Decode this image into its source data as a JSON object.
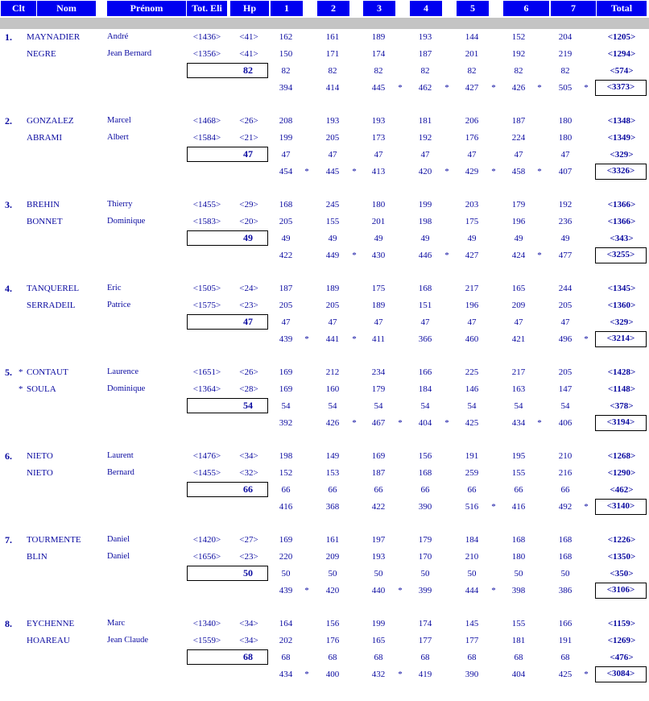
{
  "headers": [
    "Clt",
    "Nom",
    "Prénom",
    "Tot. Eli",
    "Hp",
    "1",
    "2",
    "3",
    "4",
    "5",
    "6",
    "7",
    "Total"
  ],
  "teams": [
    {
      "rank": "1.",
      "p1": {
        "star": "",
        "nom": "MAYNADIER",
        "prenom": "André",
        "tot": "<1436>",
        "hp": "<41>",
        "games": [
          "162",
          "161",
          "189",
          "193",
          "144",
          "152",
          "204"
        ],
        "total": "<1205>"
      },
      "p2": {
        "star": "",
        "nom": "NEGRE",
        "prenom": "Jean Bernard",
        "tot": "<1356>",
        "hp": "<41>",
        "games": [
          "150",
          "171",
          "174",
          "187",
          "201",
          "192",
          "219"
        ],
        "total": "<1294>"
      },
      "hp": "82",
      "hcp": [
        "82",
        "82",
        "82",
        "82",
        "82",
        "82",
        "82"
      ],
      "hcp_total": "<574>",
      "sums": [
        "394",
        "414",
        "445",
        "462",
        "427",
        "426",
        "505"
      ],
      "marks": [
        "",
        "",
        "*",
        "*",
        "*",
        "*",
        "*"
      ],
      "team_total": "<3373>"
    },
    {
      "rank": "2.",
      "p1": {
        "star": "",
        "nom": "GONZALEZ",
        "prenom": "Marcel",
        "tot": "<1468>",
        "hp": "<26>",
        "games": [
          "208",
          "193",
          "193",
          "181",
          "206",
          "187",
          "180"
        ],
        "total": "<1348>"
      },
      "p2": {
        "star": "",
        "nom": "ABRAMI",
        "prenom": "Albert",
        "tot": "<1584>",
        "hp": "<21>",
        "games": [
          "199",
          "205",
          "173",
          "192",
          "176",
          "224",
          "180"
        ],
        "total": "<1349>"
      },
      "hp": "47",
      "hcp": [
        "47",
        "47",
        "47",
        "47",
        "47",
        "47",
        "47"
      ],
      "hcp_total": "<329>",
      "sums": [
        "454",
        "445",
        "413",
        "420",
        "429",
        "458",
        "407"
      ],
      "marks": [
        "*",
        "*",
        "",
        "*",
        "*",
        "*",
        ""
      ],
      "team_total": "<3326>"
    },
    {
      "rank": "3.",
      "p1": {
        "star": "",
        "nom": "BREHIN",
        "prenom": "Thierry",
        "tot": "<1455>",
        "hp": "<29>",
        "games": [
          "168",
          "245",
          "180",
          "199",
          "203",
          "179",
          "192"
        ],
        "total": "<1366>"
      },
      "p2": {
        "star": "",
        "nom": "BONNET",
        "prenom": "Dominique",
        "tot": "<1583>",
        "hp": "<20>",
        "games": [
          "205",
          "155",
          "201",
          "198",
          "175",
          "196",
          "236"
        ],
        "total": "<1366>"
      },
      "hp": "49",
      "hcp": [
        "49",
        "49",
        "49",
        "49",
        "49",
        "49",
        "49"
      ],
      "hcp_total": "<343>",
      "sums": [
        "422",
        "449",
        "430",
        "446",
        "427",
        "424",
        "477"
      ],
      "marks": [
        "",
        "*",
        "",
        "*",
        "",
        "*",
        ""
      ],
      "team_total": "<3255>"
    },
    {
      "rank": "4.",
      "p1": {
        "star": "",
        "nom": "TANQUEREL",
        "prenom": "Eric",
        "tot": "<1505>",
        "hp": "<24>",
        "games": [
          "187",
          "189",
          "175",
          "168",
          "217",
          "165",
          "244"
        ],
        "total": "<1345>"
      },
      "p2": {
        "star": "",
        "nom": "SERRADEIL",
        "prenom": "Patrice",
        "tot": "<1575>",
        "hp": "<23>",
        "games": [
          "205",
          "205",
          "189",
          "151",
          "196",
          "209",
          "205"
        ],
        "total": "<1360>"
      },
      "hp": "47",
      "hcp": [
        "47",
        "47",
        "47",
        "47",
        "47",
        "47",
        "47"
      ],
      "hcp_total": "<329>",
      "sums": [
        "439",
        "441",
        "411",
        "366",
        "460",
        "421",
        "496"
      ],
      "marks": [
        "*",
        "*",
        "",
        "",
        "",
        "",
        "*"
      ],
      "team_total": "<3214>"
    },
    {
      "rank": "5.",
      "p1": {
        "star": "*",
        "nom": "CONTAUT",
        "prenom": "Laurence",
        "tot": "<1651>",
        "hp": "<26>",
        "games": [
          "169",
          "212",
          "234",
          "166",
          "225",
          "217",
          "205"
        ],
        "total": "<1428>"
      },
      "p2": {
        "star": "*",
        "nom": "SOULA",
        "prenom": "Dominique",
        "tot": "<1364>",
        "hp": "<28>",
        "games": [
          "169",
          "160",
          "179",
          "184",
          "146",
          "163",
          "147"
        ],
        "total": "<1148>"
      },
      "hp": "54",
      "hcp": [
        "54",
        "54",
        "54",
        "54",
        "54",
        "54",
        "54"
      ],
      "hcp_total": "<378>",
      "sums": [
        "392",
        "426",
        "467",
        "404",
        "425",
        "434",
        "406"
      ],
      "marks": [
        "",
        "*",
        "*",
        "*",
        "",
        "*",
        ""
      ],
      "team_total": "<3194>"
    },
    {
      "rank": "6.",
      "p1": {
        "star": "",
        "nom": "NIETO",
        "prenom": "Laurent",
        "tot": "<1476>",
        "hp": "<34>",
        "games": [
          "198",
          "149",
          "169",
          "156",
          "191",
          "195",
          "210"
        ],
        "total": "<1268>"
      },
      "p2": {
        "star": "",
        "nom": "NIETO",
        "prenom": "Bernard",
        "tot": "<1455>",
        "hp": "<32>",
        "games": [
          "152",
          "153",
          "187",
          "168",
          "259",
          "155",
          "216"
        ],
        "total": "<1290>"
      },
      "hp": "66",
      "hcp": [
        "66",
        "66",
        "66",
        "66",
        "66",
        "66",
        "66"
      ],
      "hcp_total": "<462>",
      "sums": [
        "416",
        "368",
        "422",
        "390",
        "516",
        "416",
        "492"
      ],
      "marks": [
        "",
        "",
        "",
        "",
        "*",
        "",
        "*"
      ],
      "team_total": "<3140>"
    },
    {
      "rank": "7.",
      "p1": {
        "star": "",
        "nom": "TOURMENTE",
        "prenom": "Daniel",
        "tot": "<1420>",
        "hp": "<27>",
        "games": [
          "169",
          "161",
          "197",
          "179",
          "184",
          "168",
          "168"
        ],
        "total": "<1226>"
      },
      "p2": {
        "star": "",
        "nom": "BLIN",
        "prenom": "Daniel",
        "tot": "<1656>",
        "hp": "<23>",
        "games": [
          "220",
          "209",
          "193",
          "170",
          "210",
          "180",
          "168"
        ],
        "total": "<1350>"
      },
      "hp": "50",
      "hcp": [
        "50",
        "50",
        "50",
        "50",
        "50",
        "50",
        "50"
      ],
      "hcp_total": "<350>",
      "sums": [
        "439",
        "420",
        "440",
        "399",
        "444",
        "398",
        "386"
      ],
      "marks": [
        "*",
        "",
        "*",
        "",
        "*",
        "",
        ""
      ],
      "team_total": "<3106>"
    },
    {
      "rank": "8.",
      "p1": {
        "star": "",
        "nom": "EYCHENNE",
        "prenom": "Marc",
        "tot": "<1340>",
        "hp": "<34>",
        "games": [
          "164",
          "156",
          "199",
          "174",
          "145",
          "155",
          "166"
        ],
        "total": "<1159>"
      },
      "p2": {
        "star": "",
        "nom": "HOAREAU",
        "prenom": "Jean Claude",
        "tot": "<1559>",
        "hp": "<34>",
        "games": [
          "202",
          "176",
          "165",
          "177",
          "177",
          "181",
          "191"
        ],
        "total": "<1269>"
      },
      "hp": "68",
      "hcp": [
        "68",
        "68",
        "68",
        "68",
        "68",
        "68",
        "68"
      ],
      "hcp_total": "<476>",
      "sums": [
        "434",
        "400",
        "432",
        "419",
        "390",
        "404",
        "425"
      ],
      "marks": [
        "*",
        "",
        "*",
        "",
        "",
        "",
        "*"
      ],
      "team_total": "<3084>"
    }
  ]
}
